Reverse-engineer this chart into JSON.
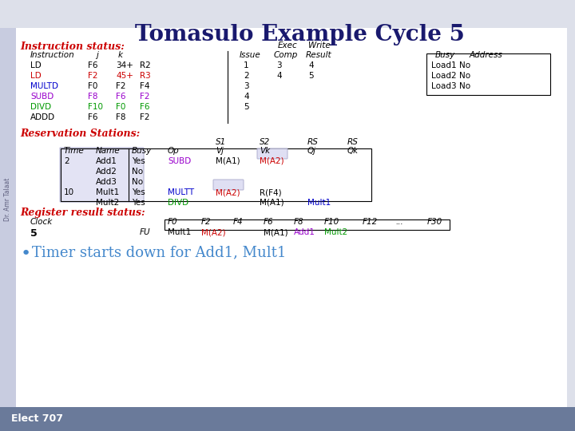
{
  "title": "Tomasulo Example Cycle 5",
  "title_color": "#1a1a6e",
  "footer_text": "Elect 707",
  "watermark": "Dr. Amr Talaat",
  "instruction_status_label": "Instruction status:",
  "exec_label": "Exec",
  "write_label": "Write",
  "is_rows": [
    [
      "LD",
      "F6",
      "34+",
      "R2",
      "1",
      "3",
      "4",
      "Load1",
      "No"
    ],
    [
      "LD",
      "F2",
      "45+",
      "R3",
      "2",
      "4",
      "5",
      "Load2",
      "No"
    ],
    [
      "MULTD",
      "F0",
      "F2",
      "F4",
      "3",
      "",
      "",
      "Load3",
      "No"
    ],
    [
      "SUBD",
      "F8",
      "F6",
      "F2",
      "4",
      "",
      "",
      "",
      ""
    ],
    [
      "DIVD",
      "F10",
      "F0",
      "F6",
      "5",
      "",
      "",
      "",
      ""
    ],
    [
      "ADDD",
      "F6",
      "F8",
      "F2",
      "",
      "",
      "",
      "",
      ""
    ]
  ],
  "is_row_colors": [
    [
      "#000000",
      "#000000",
      "#000000",
      "#000000"
    ],
    [
      "#cc0000",
      "#cc0000",
      "#cc0000",
      "#cc0000"
    ],
    [
      "#0000cc",
      "#000000",
      "#000000",
      "#000000"
    ],
    [
      "#9900cc",
      "#9900cc",
      "#9900cc",
      "#9900cc"
    ],
    [
      "#009900",
      "#009900",
      "#009900",
      "#009900"
    ],
    [
      "#000000",
      "#000000",
      "#000000",
      "#000000"
    ]
  ],
  "rs_label": "Reservation Stations:",
  "rs_rows": [
    [
      "2",
      "Add1",
      "Yes",
      "SUBD",
      "M(A1)",
      "M(A2)",
      "",
      ""
    ],
    [
      "",
      "Add2",
      "No",
      "",
      "",
      "",
      "",
      ""
    ],
    [
      "",
      "Add3",
      "No",
      "",
      "",
      "",
      "",
      ""
    ],
    [
      "10",
      "Mult1",
      "Yes",
      "MULTT",
      "M(A2)",
      "R(F4)",
      "",
      ""
    ],
    [
      "",
      "Mult2",
      "Yes",
      "DIVD",
      "",
      "M(A1)",
      "Mult1",
      ""
    ]
  ],
  "rs_op_colors": [
    "#9900cc",
    "#000000",
    "#000000",
    "#0000cc",
    "#009900"
  ],
  "rs_vj_colors": [
    "#000000",
    "#000000",
    "#000000",
    "#cc0000",
    "#000000"
  ],
  "rs_vk_colors": [
    "#cc0000",
    "#000000",
    "#000000",
    "#000000",
    "#000000"
  ],
  "rs_qj_colors": [
    "#000000",
    "#000000",
    "#000000",
    "#000000",
    "#0000cc"
  ],
  "rs_qk_colors": [
    "#000000",
    "#000000",
    "#000000",
    "#000000",
    "#000000"
  ],
  "rrs_label": "Register result status:",
  "rrs_clk_label": "Clock",
  "rrs_clk_val": "5",
  "rrs_fu_label": "FU",
  "rrs_registers": [
    "F0",
    "F2",
    "F4",
    "F6",
    "F8",
    "F10",
    "F12",
    "...",
    "F30"
  ],
  "rrs_values": [
    "Mult1",
    "M(A2)",
    "",
    "M(A1)",
    "Add1",
    "Mult2",
    "",
    "",
    ""
  ],
  "rrs_val_colors": [
    "#000000",
    "#cc0000",
    "#000000",
    "#000000",
    "#9900cc",
    "#009900",
    "#000000",
    "#000000",
    "#000000"
  ],
  "bullet_text": "Timer starts down for Add1, Mult1",
  "bullet_color": "#4488cc"
}
